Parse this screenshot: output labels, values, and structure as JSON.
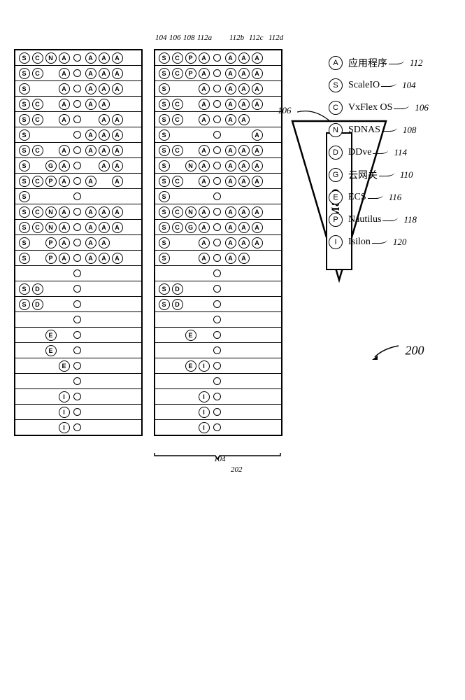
{
  "legend": [
    {
      "letter": "A",
      "label": "应用程序",
      "ref": "112"
    },
    {
      "letter": "S",
      "label": "ScaleIO",
      "ref": "104"
    },
    {
      "letter": "C",
      "label": "VxFlex OS",
      "ref": "106"
    },
    {
      "letter": "N",
      "label": "SDNAS",
      "ref": "108"
    },
    {
      "letter": "D",
      "label": "DDve",
      "ref": "114"
    },
    {
      "letter": "G",
      "label": "云网关",
      "ref": "110"
    },
    {
      "letter": "E",
      "label": "ECS",
      "ref": "116"
    },
    {
      "letter": "P",
      "label": "Nautilus",
      "ref": "118"
    },
    {
      "letter": "I",
      "label": "Isilon",
      "ref": "120"
    }
  ],
  "triangle": {
    "label": "M&O",
    "ref": "106"
  },
  "figref": "200",
  "colrefs_top": [
    "104",
    "106",
    "108",
    "112a",
    "",
    "112b",
    "112c",
    "112d"
  ],
  "colrefs_bottom_left": "104",
  "colrefs_bottom_right": "202",
  "rack_left": [
    [
      "S",
      "C",
      "N",
      "A",
      "o",
      "A",
      "A",
      "A"
    ],
    [
      "S",
      "C",
      "",
      "A",
      "o",
      "A",
      "A",
      "A"
    ],
    [
      "S",
      "",
      "",
      "A",
      "o",
      "A",
      "A",
      "A"
    ],
    [
      "S",
      "C",
      "",
      "A",
      "o",
      "A",
      "A",
      ""
    ],
    [
      "S",
      "C",
      "",
      "A",
      "o",
      "",
      "A",
      "A"
    ],
    [
      "S",
      "",
      "",
      "",
      "o",
      "A",
      "A",
      "A"
    ],
    [
      "S",
      "C",
      "",
      "A",
      "o",
      "A",
      "A",
      "A"
    ],
    [
      "S",
      "",
      "G",
      "A",
      "o",
      "",
      "A",
      "A"
    ],
    [
      "S",
      "C",
      "P",
      "A",
      "o",
      "A",
      "",
      "A"
    ],
    [
      "S",
      "",
      "",
      "",
      "o",
      "",
      "",
      ""
    ],
    [
      "S",
      "C",
      "N",
      "A",
      "o",
      "A",
      "A",
      "A"
    ],
    [
      "S",
      "C",
      "N",
      "A",
      "o",
      "A",
      "A",
      "A"
    ],
    [
      "S",
      "",
      "P",
      "A",
      "o",
      "A",
      "A",
      ""
    ],
    [
      "S",
      "",
      "P",
      "A",
      "o",
      "A",
      "A",
      "A"
    ],
    [
      "",
      "",
      "",
      "",
      "o",
      "",
      "",
      ""
    ],
    [
      "S",
      "D",
      "",
      "",
      "o",
      "",
      "",
      ""
    ],
    [
      "S",
      "D",
      "",
      "",
      "o",
      "",
      "",
      ""
    ],
    [
      "",
      "",
      "",
      "",
      "o",
      "",
      "",
      ""
    ],
    [
      "",
      "",
      "E",
      "",
      "o",
      "",
      "",
      ""
    ],
    [
      "",
      "",
      "E",
      "",
      "o",
      "",
      "",
      ""
    ],
    [
      "",
      "",
      "",
      "E",
      "o",
      "",
      "",
      ""
    ],
    [
      "",
      "",
      "",
      "",
      "o",
      "",
      "",
      ""
    ],
    [
      "",
      "",
      "",
      "I",
      "o",
      "",
      "",
      ""
    ],
    [
      "",
      "",
      "",
      "I",
      "o",
      "",
      "",
      ""
    ],
    [
      "",
      "",
      "",
      "I",
      "o",
      "",
      "",
      ""
    ]
  ],
  "rack_right": [
    [
      "S",
      "C",
      "P",
      "A",
      "o",
      "A",
      "A",
      "A"
    ],
    [
      "S",
      "C",
      "P",
      "A",
      "o",
      "A",
      "A",
      "A"
    ],
    [
      "S",
      "",
      "",
      "A",
      "o",
      "A",
      "A",
      "A"
    ],
    [
      "S",
      "C",
      "",
      "A",
      "o",
      "A",
      "A",
      "A"
    ],
    [
      "S",
      "C",
      "",
      "A",
      "o",
      "A",
      "A",
      ""
    ],
    [
      "S",
      "",
      "",
      "",
      "o",
      "",
      "",
      "A"
    ],
    [
      "S",
      "C",
      "",
      "A",
      "o",
      "A",
      "A",
      "A"
    ],
    [
      "S",
      "",
      "N",
      "A",
      "o",
      "A",
      "A",
      "A"
    ],
    [
      "S",
      "C",
      "",
      "A",
      "o",
      "A",
      "A",
      "A"
    ],
    [
      "S",
      "",
      "",
      "",
      "o",
      "",
      "",
      ""
    ],
    [
      "S",
      "C",
      "N",
      "A",
      "o",
      "A",
      "A",
      "A"
    ],
    [
      "S",
      "C",
      "G",
      "A",
      "o",
      "A",
      "A",
      "A"
    ],
    [
      "S",
      "",
      "",
      "A",
      "o",
      "A",
      "A",
      "A"
    ],
    [
      "S",
      "",
      "",
      "A",
      "o",
      "A",
      "A",
      ""
    ],
    [
      "",
      "",
      "",
      "",
      "o",
      "",
      "",
      ""
    ],
    [
      "S",
      "D",
      "",
      "",
      "o",
      "",
      "",
      ""
    ],
    [
      "S",
      "D",
      "",
      "",
      "o",
      "",
      "",
      ""
    ],
    [
      "",
      "",
      "",
      "",
      "o",
      "",
      "",
      ""
    ],
    [
      "",
      "",
      "E",
      "",
      "o",
      "",
      "",
      ""
    ],
    [
      "",
      "",
      "",
      "",
      "o",
      "",
      "",
      ""
    ],
    [
      "",
      "",
      "E",
      "I",
      "o",
      "",
      "",
      ""
    ],
    [
      "",
      "",
      "",
      "",
      "o",
      "",
      "",
      ""
    ],
    [
      "",
      "",
      "",
      "I",
      "o",
      "",
      "",
      ""
    ],
    [
      "",
      "",
      "",
      "I",
      "o",
      "",
      "",
      ""
    ],
    [
      "",
      "",
      "",
      "I",
      "o",
      "",
      "",
      ""
    ]
  ],
  "colors": {
    "stroke": "#000000",
    "bg": "#ffffff"
  }
}
